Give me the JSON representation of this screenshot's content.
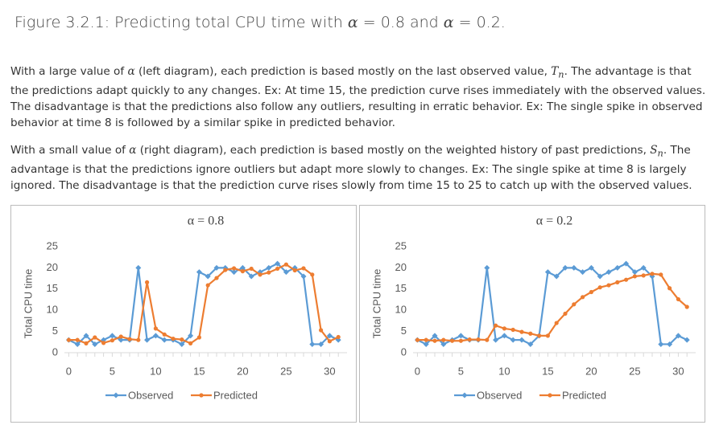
{
  "title": [
    "Figure 3.2.1: Predicting total CPU time with ",
    "α",
    " = 0.8 and ",
    "α",
    " = 0.2."
  ],
  "paragraphs": [
    [
      "With a large value of ",
      "α",
      " (left diagram), each prediction is based mostly on the last observed value, ",
      "T",
      "n",
      ". The advantage is that the predictions adapt quickly to any changes. Ex: At time 15, the prediction curve rises immediately with the observed values. The disadvantage is that the predictions also follow any outliers, resulting in erratic behavior. Ex: The single spike in observed behavior at time 8 is followed by a similar spike in predicted behavior."
    ],
    [
      "With a small value of ",
      "α",
      " (right diagram), each prediction is based mostly on the weighted history of past predictions, ",
      "S",
      "n",
      ". The advantage is that the predictions ignore outliers but adapt more slowly to changes. Ex: The single spike at time 8 is largely ignored. The disadvantage is that the prediction curve rises slowly from time 15 to 25 to catch up with the observed values."
    ]
  ],
  "chart_data": [
    {
      "type": "line",
      "title": "α = 0.8",
      "y_label": "Total CPU time",
      "x": [
        0,
        1,
        2,
        3,
        4,
        5,
        6,
        7,
        8,
        9,
        10,
        11,
        12,
        13,
        14,
        15,
        16,
        17,
        18,
        19,
        20,
        21,
        22,
        23,
        24,
        25,
        26,
        27,
        28,
        29,
        30,
        31
      ],
      "series": [
        {
          "name": "Observed",
          "color": "#5b9bd5",
          "values": [
            3,
            2,
            4,
            2,
            3,
            4,
            3,
            3,
            20,
            3,
            4,
            3,
            3,
            2,
            4,
            19,
            18,
            20,
            20,
            19,
            20,
            18,
            19,
            20,
            21,
            19,
            20,
            18,
            2,
            2,
            4,
            3
          ]
        },
        {
          "name": "Predicted",
          "color": "#ed7d31",
          "values": [
            3,
            3,
            2.2,
            3.6,
            2.3,
            2.9,
            3.8,
            3.2,
            3,
            16.6,
            5.7,
            4.3,
            3.3,
            3.1,
            2.2,
            3.6,
            15.9,
            17.6,
            19.5,
            19.9,
            19.2,
            19.8,
            18.4,
            18.9,
            19.8,
            20.8,
            19.4,
            19.9,
            18.4,
            5.3,
            2.7,
            3.7
          ]
        }
      ],
      "xlim": [
        -0.5,
        32
      ],
      "xticks": [
        0,
        5,
        10,
        15,
        20,
        25,
        30
      ],
      "ylim": [
        0,
        25
      ],
      "yticks": [
        0,
        5,
        10,
        15,
        20,
        25
      ],
      "legend": "bottom"
    },
    {
      "type": "line",
      "title": "α = 0.2",
      "y_label": "Total CPU time",
      "x": [
        0,
        1,
        2,
        3,
        4,
        5,
        6,
        7,
        8,
        9,
        10,
        11,
        12,
        13,
        14,
        15,
        16,
        17,
        18,
        19,
        20,
        21,
        22,
        23,
        24,
        25,
        26,
        27,
        28,
        29,
        30,
        31
      ],
      "series": [
        {
          "name": "Observed",
          "color": "#5b9bd5",
          "values": [
            3,
            2,
            4,
            2,
            3,
            4,
            3,
            3,
            20,
            3,
            4,
            3,
            3,
            2,
            4,
            19,
            18,
            20,
            20,
            19,
            20,
            18,
            19,
            20,
            21,
            19,
            20,
            18,
            2,
            2,
            4,
            3
          ]
        },
        {
          "name": "Predicted",
          "color": "#ed7d31",
          "values": [
            3,
            3,
            2.8,
            3,
            2.8,
            2.8,
            3.1,
            3.1,
            3,
            6.4,
            5.7,
            5.4,
            4.9,
            4.5,
            4,
            4,
            7,
            9.2,
            11.4,
            13.1,
            14.3,
            15.4,
            15.9,
            16.6,
            17.2,
            18,
            18.2,
            18.6,
            18.4,
            15.2,
            12.6,
            10.8
          ]
        }
      ],
      "xlim": [
        -0.5,
        32
      ],
      "xticks": [
        0,
        5,
        10,
        15,
        20,
        25,
        30
      ],
      "ylim": [
        0,
        25
      ],
      "yticks": [
        0,
        5,
        10,
        15,
        20,
        25
      ],
      "legend": "bottom"
    }
  ]
}
